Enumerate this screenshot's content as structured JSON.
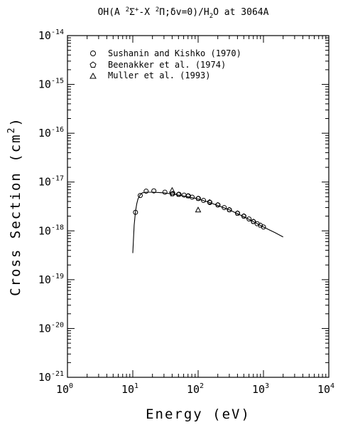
{
  "chart_data": {
    "type": "scatter",
    "title": {
      "prefix": "OH(A ",
      "sup1": "2",
      "mid1": "Σ",
      "sup2": "+",
      "mid2": "-X ",
      "sup3": "2",
      "mid3": "Π;δv=0)/H",
      "sub1": "2",
      "suffix": "O at 3064A"
    },
    "xlabel": "Energy (eV)",
    "ylabel": {
      "text": "Cross Section (cm",
      "sup": "2",
      "close": ")"
    },
    "xscale": "log",
    "yscale": "log",
    "xlim": [
      1,
      10000
    ],
    "ylim": [
      1e-21,
      1e-14
    ],
    "x_ticks": [
      {
        "base": "10",
        "exp": "0",
        "value": 1
      },
      {
        "base": "10",
        "exp": "1",
        "value": 10
      },
      {
        "base": "10",
        "exp": "2",
        "value": 100
      },
      {
        "base": "10",
        "exp": "3",
        "value": 1000
      },
      {
        "base": "10",
        "exp": "4",
        "value": 10000
      }
    ],
    "y_ticks": [
      {
        "base": "10",
        "exp": "-21",
        "value": 1e-21
      },
      {
        "base": "10",
        "exp": "-20",
        "value": 1e-20
      },
      {
        "base": "10",
        "exp": "-19",
        "value": 1e-19
      },
      {
        "base": "10",
        "exp": "-18",
        "value": 1e-18
      },
      {
        "base": "10",
        "exp": "-17",
        "value": 1e-17
      },
      {
        "base": "10",
        "exp": "-16",
        "value": 1e-16
      },
      {
        "base": "10",
        "exp": "-15",
        "value": 1e-15
      },
      {
        "base": "10",
        "exp": "-14",
        "value": 1e-14
      }
    ],
    "legend_position": "top-left",
    "grid": false,
    "series": [
      {
        "name": "Sushanin and Kishko (1970)",
        "marker": "circle",
        "x": [
          11,
          13,
          16,
          21,
          31,
          41,
          51,
          61,
          71,
          81,
          101,
          121,
          151,
          201,
          251,
          301,
          401,
          501,
          601,
          701,
          801,
          1000
        ],
        "y": [
          2.4e-18,
          5.3e-18,
          6.5e-18,
          6.6e-18,
          6.2e-18,
          5.8e-18,
          5.6e-18,
          5.4e-18,
          5.2e-18,
          4.9e-18,
          4.6e-18,
          4.2e-18,
          3.8e-18,
          3.4e-18,
          3e-18,
          2.7e-18,
          2.3e-18,
          2e-18,
          1.75e-18,
          1.55e-18,
          1.4e-18,
          1.2e-18
        ]
      },
      {
        "name": "Beenakker et al. (1974)",
        "marker": "pentagon",
        "x": [
          40,
          50,
          70,
          100,
          150,
          200,
          300,
          400,
          500,
          700,
          900
        ],
        "y": [
          5.7e-18,
          5.6e-18,
          5.2e-18,
          4.6e-18,
          3.9e-18,
          3.4e-18,
          2.7e-18,
          2.3e-18,
          2e-18,
          1.55e-18,
          1.3e-18
        ]
      },
      {
        "name": "Muller et al. (1993)",
        "marker": "triangle",
        "x": [
          40,
          100
        ],
        "y": [
          6.8e-18,
          2.7e-18
        ]
      }
    ],
    "fit_curve": {
      "x": [
        10,
        10.5,
        11,
        11.5,
        12,
        13,
        14,
        16,
        18,
        20,
        25,
        30,
        40,
        50,
        70,
        100,
        150,
        200,
        300,
        500,
        700,
        1000,
        1500,
        2000
      ],
      "y": [
        3.5e-19,
        1.3e-18,
        2.5e-18,
        3.6e-18,
        4.5e-18,
        5.5e-18,
        6e-18,
        6.2e-18,
        6.2e-18,
        6.2e-18,
        6.1e-18,
        6e-18,
        5.7e-18,
        5.4e-18,
        5e-18,
        4.5e-18,
        3.8e-18,
        3.3e-18,
        2.7e-18,
        1.95e-18,
        1.55e-18,
        1.2e-18,
        9.2e-19,
        7.5e-19
      ]
    }
  }
}
